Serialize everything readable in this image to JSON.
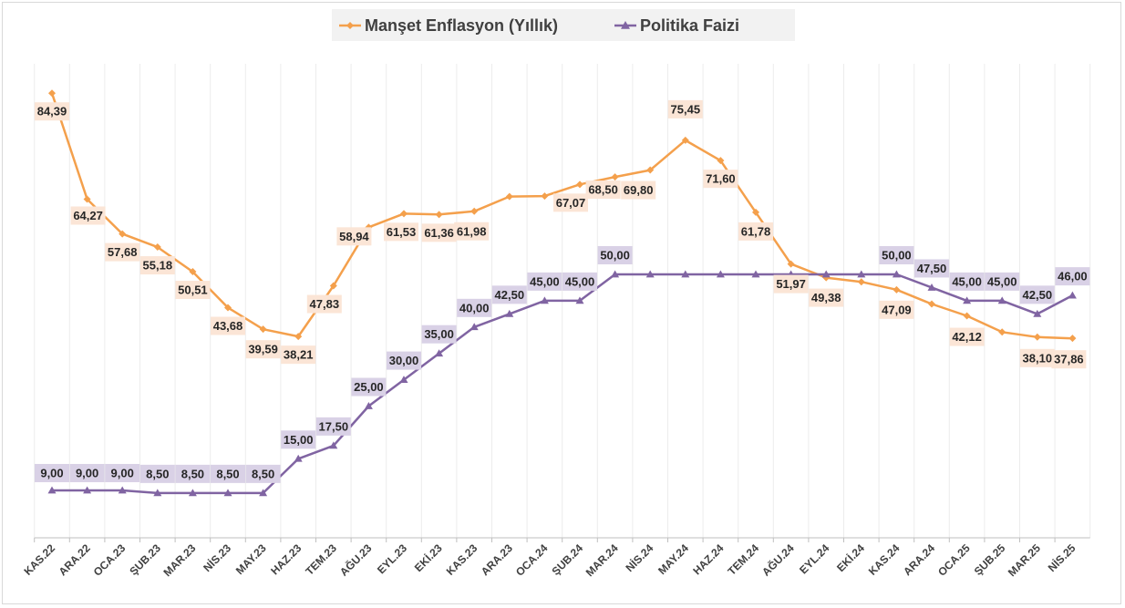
{
  "chart_data": {
    "type": "line",
    "title": "",
    "xlabel": "",
    "ylabel": "",
    "ylim": [
      0,
      90
    ],
    "grid": "vertical",
    "legend_position": "top-center",
    "categories": [
      "KAS.22",
      "ARA.22",
      "OCA.23",
      "ŞUB.23",
      "MAR.23",
      "NİS.23",
      "MAY.23",
      "HAZ.23",
      "TEM.23",
      "AĞU.23",
      "EYL.23",
      "EKİ.23",
      "KAS.23",
      "ARA.23",
      "OCA.24",
      "ŞUB.24",
      "MAR.24",
      "NİS.24",
      "MAY.24",
      "HAZ.24",
      "TEM.24",
      "AĞU.24",
      "EYL.24",
      "EKİ.24",
      "KAS.24",
      "ARA.24",
      "OCA.25",
      "ŞUB.25",
      "MAR.25",
      "NİS.25"
    ],
    "series": [
      {
        "name": "Manşet Enflasyon (Yıllık)",
        "color": "#f4a04c",
        "label_bg": "#fbe5d6",
        "marker": "diamond",
        "values": [
          84.39,
          64.27,
          57.68,
          55.18,
          50.51,
          43.68,
          39.59,
          38.21,
          47.83,
          58.94,
          61.53,
          61.36,
          61.98,
          64.77,
          64.86,
          67.07,
          68.5,
          69.8,
          75.45,
          71.6,
          61.78,
          51.97,
          49.38,
          48.58,
          47.09,
          44.38,
          42.12,
          39.05,
          38.1,
          37.86
        ],
        "labels": [
          "84,39",
          "64,27",
          "57,68",
          "55,18",
          "50,51",
          "43,68",
          "39,59",
          "38,21",
          "47,83",
          "58,94",
          "61,53",
          "61,36",
          "61,98",
          "",
          "",
          "67,07",
          "68,50",
          "69,80",
          "75,45",
          "71,60",
          "61,78",
          "51,97",
          "49,38",
          "",
          "47,09",
          "",
          "42,12",
          "",
          "38,10",
          "37,86"
        ]
      },
      {
        "name": "Politika Faizi",
        "color": "#8064a2",
        "label_bg": "#d9d1e6",
        "marker": "triangle",
        "values": [
          9.0,
          9.0,
          9.0,
          8.5,
          8.5,
          8.5,
          8.5,
          15.0,
          17.5,
          25.0,
          30.0,
          35.0,
          40.0,
          42.5,
          45.0,
          45.0,
          50.0,
          50.0,
          50.0,
          50.0,
          50.0,
          50.0,
          50.0,
          50.0,
          50.0,
          47.5,
          45.0,
          45.0,
          42.5,
          46.0
        ],
        "labels": [
          "9,00",
          "9,00",
          "9,00",
          "8,50",
          "8,50",
          "8,50",
          "8,50",
          "15,00",
          "17,50",
          "25,00",
          "30,00",
          "35,00",
          "40,00",
          "42,50",
          "45,00",
          "45,00",
          "50,00",
          "",
          "",
          "",
          "",
          "",
          "",
          "",
          "50,00",
          "47,50",
          "45,00",
          "45,00",
          "42,50",
          "46,00"
        ]
      }
    ]
  }
}
